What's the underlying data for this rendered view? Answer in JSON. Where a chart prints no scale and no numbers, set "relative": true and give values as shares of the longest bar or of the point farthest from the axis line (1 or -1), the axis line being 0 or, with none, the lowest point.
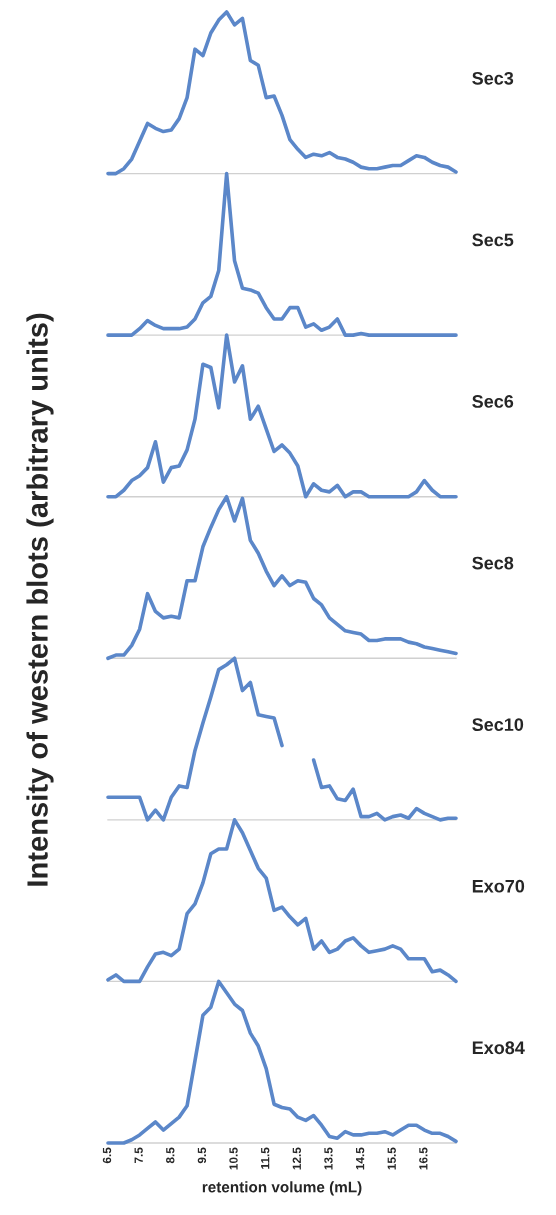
{
  "chart_data": [
    {
      "type": "line",
      "relative": true,
      "tick_labels": false,
      "xlim": [
        6.5,
        17.5
      ],
      "x": [
        6.5,
        6.75,
        7.0,
        7.25,
        7.5,
        7.75,
        8.0,
        8.25,
        8.5,
        8.75,
        9.0,
        9.25,
        9.5,
        9.75,
        10.0,
        10.25,
        10.5,
        10.75,
        11.0,
        11.25,
        11.5,
        11.75,
        12.0,
        12.25,
        12.5,
        12.75,
        13.0,
        13.25,
        13.5,
        13.75,
        14.0,
        14.25,
        14.5,
        14.75,
        15.0,
        15.25,
        15.5,
        15.75,
        16.0,
        16.25,
        16.5,
        16.75,
        17.0,
        17.25,
        17.5
      ],
      "series": [
        {
          "name": "Sec3",
          "color": "#5b87c9",
          "values": [
            0,
            0,
            0.03,
            0.09,
            0.2,
            0.31,
            0.28,
            0.26,
            0.27,
            0.34,
            0.47,
            0.77,
            0.73,
            0.87,
            0.95,
            1,
            0.92,
            0.96,
            0.7,
            0.67,
            0.47,
            0.48,
            0.36,
            0.21,
            0.15,
            0.1,
            0.12,
            0.11,
            0.13,
            0.1,
            0.09,
            0.07,
            0.04,
            0.03,
            0.03,
            0.04,
            0.05,
            0.05,
            0.08,
            0.11,
            0.1,
            0.07,
            0.05,
            0.04,
            0.01
          ]
        }
      ]
    },
    {
      "type": "line",
      "relative": true,
      "tick_labels": false,
      "xlim": [
        6.5,
        17.5
      ],
      "x": [
        6.5,
        6.75,
        7.0,
        7.25,
        7.5,
        7.75,
        8.0,
        8.25,
        8.5,
        8.75,
        9.0,
        9.25,
        9.5,
        9.75,
        10.0,
        10.25,
        10.5,
        10.75,
        11.0,
        11.25,
        11.5,
        11.75,
        12.0,
        12.25,
        12.5,
        12.75,
        13.0,
        13.25,
        13.5,
        13.75,
        14.0,
        14.25,
        14.5,
        14.75,
        15.0,
        15.25,
        15.5,
        15.75,
        16.0,
        16.25,
        16.5,
        16.75,
        17.0,
        17.25,
        17.5
      ],
      "series": [
        {
          "name": "Sec5",
          "color": "#5b87c9",
          "values": [
            0,
            0,
            0,
            0,
            0.04,
            0.09,
            0.06,
            0.04,
            0.04,
            0.04,
            0.05,
            0.1,
            0.2,
            0.24,
            0.4,
            1,
            0.46,
            0.29,
            0.28,
            0.26,
            0.17,
            0.1,
            0.1,
            0.17,
            0.17,
            0.05,
            0.07,
            0.03,
            0.05,
            0.1,
            0,
            0,
            0.01,
            0,
            0,
            0,
            0,
            0,
            0,
            0,
            0,
            0,
            0,
            0,
            0
          ]
        }
      ]
    },
    {
      "type": "line",
      "relative": true,
      "tick_labels": false,
      "xlim": [
        6.5,
        17.5
      ],
      "x": [
        6.5,
        6.75,
        7.0,
        7.25,
        7.5,
        7.75,
        8.0,
        8.25,
        8.5,
        8.75,
        9.0,
        9.25,
        9.5,
        9.75,
        10.0,
        10.25,
        10.5,
        10.75,
        11.0,
        11.25,
        11.5,
        11.75,
        12.0,
        12.25,
        12.5,
        12.75,
        13.0,
        13.25,
        13.5,
        13.75,
        14.0,
        14.25,
        14.5,
        14.75,
        15.0,
        15.25,
        15.5,
        15.75,
        16.0,
        16.25,
        16.5,
        16.75,
        17.0,
        17.25,
        17.5
      ],
      "series": [
        {
          "name": "Sec6",
          "color": "#5b87c9",
          "values": [
            0,
            0,
            0.04,
            0.1,
            0.13,
            0.18,
            0.34,
            0.09,
            0.18,
            0.19,
            0.29,
            0.48,
            0.82,
            0.8,
            0.55,
            1,
            0.71,
            0.81,
            0.48,
            0.56,
            0.42,
            0.28,
            0.32,
            0.27,
            0.19,
            0,
            0.08,
            0.04,
            0.03,
            0.07,
            0,
            0.03,
            0.03,
            0,
            0,
            0,
            0,
            0,
            0,
            0.03,
            0.1,
            0.04,
            0,
            0,
            0
          ]
        }
      ]
    },
    {
      "type": "line",
      "relative": true,
      "tick_labels": false,
      "xlim": [
        6.5,
        17.5
      ],
      "ylabel": "Intensity of western blots (arbitrary units)",
      "x": [
        6.5,
        6.75,
        7.0,
        7.25,
        7.5,
        7.75,
        8.0,
        8.25,
        8.5,
        8.75,
        9.0,
        9.25,
        9.5,
        9.75,
        10.0,
        10.25,
        10.5,
        10.75,
        11.0,
        11.25,
        11.5,
        11.75,
        12.0,
        12.25,
        12.5,
        12.75,
        13.0,
        13.25,
        13.5,
        13.75,
        14.0,
        14.25,
        14.5,
        14.75,
        15.0,
        15.25,
        15.5,
        15.75,
        16.0,
        16.25,
        16.5,
        16.75,
        17.0,
        17.25,
        17.5
      ],
      "series": [
        {
          "name": "Sec8",
          "color": "#5b87c9",
          "values": [
            0,
            0.02,
            0.02,
            0.08,
            0.18,
            0.4,
            0.29,
            0.25,
            0.26,
            0.25,
            0.48,
            0.48,
            0.69,
            0.81,
            0.92,
            1,
            0.85,
            0.99,
            0.73,
            0.65,
            0.54,
            0.45,
            0.51,
            0.45,
            0.48,
            0.47,
            0.37,
            0.33,
            0.25,
            0.21,
            0.17,
            0.16,
            0.15,
            0.11,
            0.11,
            0.12,
            0.12,
            0.12,
            0.1,
            0.09,
            0.07,
            0.06,
            0.05,
            0.04,
            0.03
          ]
        }
      ]
    },
    {
      "type": "line",
      "relative": true,
      "tick_labels": false,
      "xlim": [
        6.5,
        17.5
      ],
      "x": [
        6.5,
        6.75,
        7.0,
        7.25,
        7.5,
        7.75,
        8.0,
        8.25,
        8.5,
        8.75,
        9.0,
        9.25,
        9.5,
        9.75,
        10.0,
        10.25,
        10.5,
        10.75,
        11.0,
        11.25,
        11.5,
        11.75,
        12.0,
        12.25,
        12.5,
        12.75,
        13.0,
        13.25,
        13.5,
        13.75,
        14.0,
        14.25,
        14.5,
        14.75,
        15.0,
        15.25,
        15.5,
        15.75,
        16.0,
        16.25,
        16.5,
        16.75,
        17.0,
        17.25,
        17.5
      ],
      "series": [
        {
          "name": "Sec10",
          "color": "#5b87c9",
          "values": [
            0.14,
            0.14,
            0.14,
            0.14,
            0.14,
            0,
            0.06,
            0,
            0.14,
            0.21,
            0.2,
            0.43,
            0.6,
            0.76,
            0.93,
            0.96,
            1,
            0.8,
            0.85,
            0.65,
            0.64,
            0.63,
            0.46,
            null,
            null,
            null,
            0.37,
            0.2,
            0.21,
            0.13,
            0.12,
            0.19,
            0.02,
            0.02,
            0.04,
            0,
            0.02,
            0.03,
            0.01,
            0.07,
            0.04,
            0.02,
            0,
            0.01,
            0.01
          ]
        }
      ]
    },
    {
      "type": "line",
      "relative": true,
      "tick_labels": false,
      "xlim": [
        6.5,
        17.5
      ],
      "x": [
        6.5,
        6.75,
        7.0,
        7.25,
        7.5,
        7.75,
        8.0,
        8.25,
        8.5,
        8.75,
        9.0,
        9.25,
        9.5,
        9.75,
        10.0,
        10.25,
        10.5,
        10.75,
        11.0,
        11.25,
        11.5,
        11.75,
        12.0,
        12.25,
        12.5,
        12.75,
        13.0,
        13.25,
        13.5,
        13.75,
        14.0,
        14.25,
        14.5,
        14.75,
        15.0,
        15.25,
        15.5,
        15.75,
        16.0,
        16.25,
        16.5,
        16.75,
        17.0,
        17.25,
        17.5
      ],
      "series": [
        {
          "name": "Exo70",
          "color": "#5b87c9",
          "values": [
            0.01,
            0.04,
            0,
            0,
            0,
            0.09,
            0.17,
            0.18,
            0.16,
            0.2,
            0.42,
            0.48,
            0.61,
            0.79,
            0.82,
            0.82,
            1,
            0.92,
            0.81,
            0.7,
            0.64,
            0.44,
            0.46,
            0.4,
            0.35,
            0.39,
            0.2,
            0.25,
            0.18,
            0.2,
            0.25,
            0.27,
            0.22,
            0.18,
            0.19,
            0.2,
            0.22,
            0.2,
            0.14,
            0.14,
            0.14,
            0.06,
            0.07,
            0.04,
            0
          ]
        }
      ]
    },
    {
      "type": "line",
      "relative": true,
      "tick_labels": "x",
      "xlim": [
        6.5,
        17.5
      ],
      "xticks": [
        6.5,
        7.5,
        8.5,
        9.5,
        10.5,
        11.5,
        12.5,
        13.5,
        14.5,
        15.5,
        16.5
      ],
      "xlabel": "retention volume (mL)",
      "x": [
        6.5,
        6.75,
        7.0,
        7.25,
        7.5,
        7.75,
        8.0,
        8.25,
        8.5,
        8.75,
        9.0,
        9.25,
        9.5,
        9.75,
        10.0,
        10.25,
        10.5,
        10.75,
        11.0,
        11.25,
        11.5,
        11.75,
        12.0,
        12.25,
        12.5,
        12.75,
        13.0,
        13.25,
        13.5,
        13.75,
        14.0,
        14.25,
        14.5,
        14.75,
        15.0,
        15.25,
        15.5,
        15.75,
        16.0,
        16.25,
        16.5,
        16.75,
        17.0,
        17.25,
        17.5
      ],
      "series": [
        {
          "name": "Exo84",
          "color": "#5b87c9",
          "values": [
            0,
            0,
            0,
            0.02,
            0.05,
            0.09,
            0.13,
            0.08,
            0.12,
            0.16,
            0.23,
            0.51,
            0.79,
            0.84,
            1,
            0.93,
            0.86,
            0.82,
            0.68,
            0.6,
            0.46,
            0.24,
            0.22,
            0.21,
            0.16,
            0.14,
            0.17,
            0.11,
            0.04,
            0.03,
            0.07,
            0.05,
            0.05,
            0.06,
            0.06,
            0.07,
            0.05,
            0.08,
            0.11,
            0.11,
            0.08,
            0.06,
            0.06,
            0.04,
            0.01
          ]
        }
      ]
    }
  ]
}
